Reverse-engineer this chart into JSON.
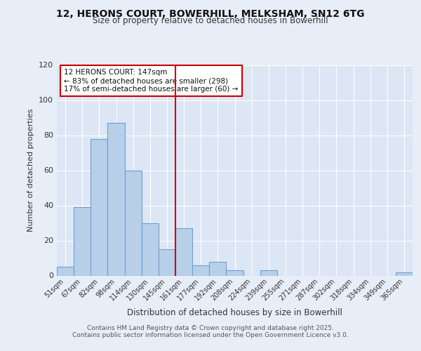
{
  "title": "12, HERONS COURT, BOWERHILL, MELKSHAM, SN12 6TG",
  "subtitle": "Size of property relative to detached houses in Bowerhill",
  "xlabel": "Distribution of detached houses by size in Bowerhill",
  "ylabel": "Number of detached properties",
  "categories": [
    "51sqm",
    "67sqm",
    "82sqm",
    "98sqm",
    "114sqm",
    "130sqm",
    "145sqm",
    "161sqm",
    "177sqm",
    "192sqm",
    "208sqm",
    "224sqm",
    "239sqm",
    "255sqm",
    "271sqm",
    "287sqm",
    "302sqm",
    "318sqm",
    "334sqm",
    "349sqm",
    "365sqm"
  ],
  "values": [
    5,
    39,
    78,
    87,
    60,
    30,
    15,
    27,
    6,
    8,
    3,
    0,
    3,
    0,
    0,
    0,
    0,
    0,
    0,
    0,
    2
  ],
  "bar_color": "#b8cfe8",
  "bar_edge_color": "#6a9fd8",
  "background_color": "#e8eef8",
  "plot_background_color": "#dde6f5",
  "grid_color": "#ffffff",
  "ylim": [
    0,
    120
  ],
  "yticks": [
    0,
    20,
    40,
    60,
    80,
    100,
    120
  ],
  "annotation_title": "12 HERONS COURT: 147sqm",
  "annotation_line1": "← 83% of detached houses are smaller (298)",
  "annotation_line2": "17% of semi-detached houses are larger (60) →",
  "vline_x_index": 6.5,
  "vline_color": "#cc0000",
  "footer1": "Contains HM Land Registry data © Crown copyright and database right 2025.",
  "footer2": "Contains public sector information licensed under the Open Government Licence v3.0.",
  "annotation_box_color": "#ffffff",
  "annotation_box_edge_color": "#cc0000"
}
